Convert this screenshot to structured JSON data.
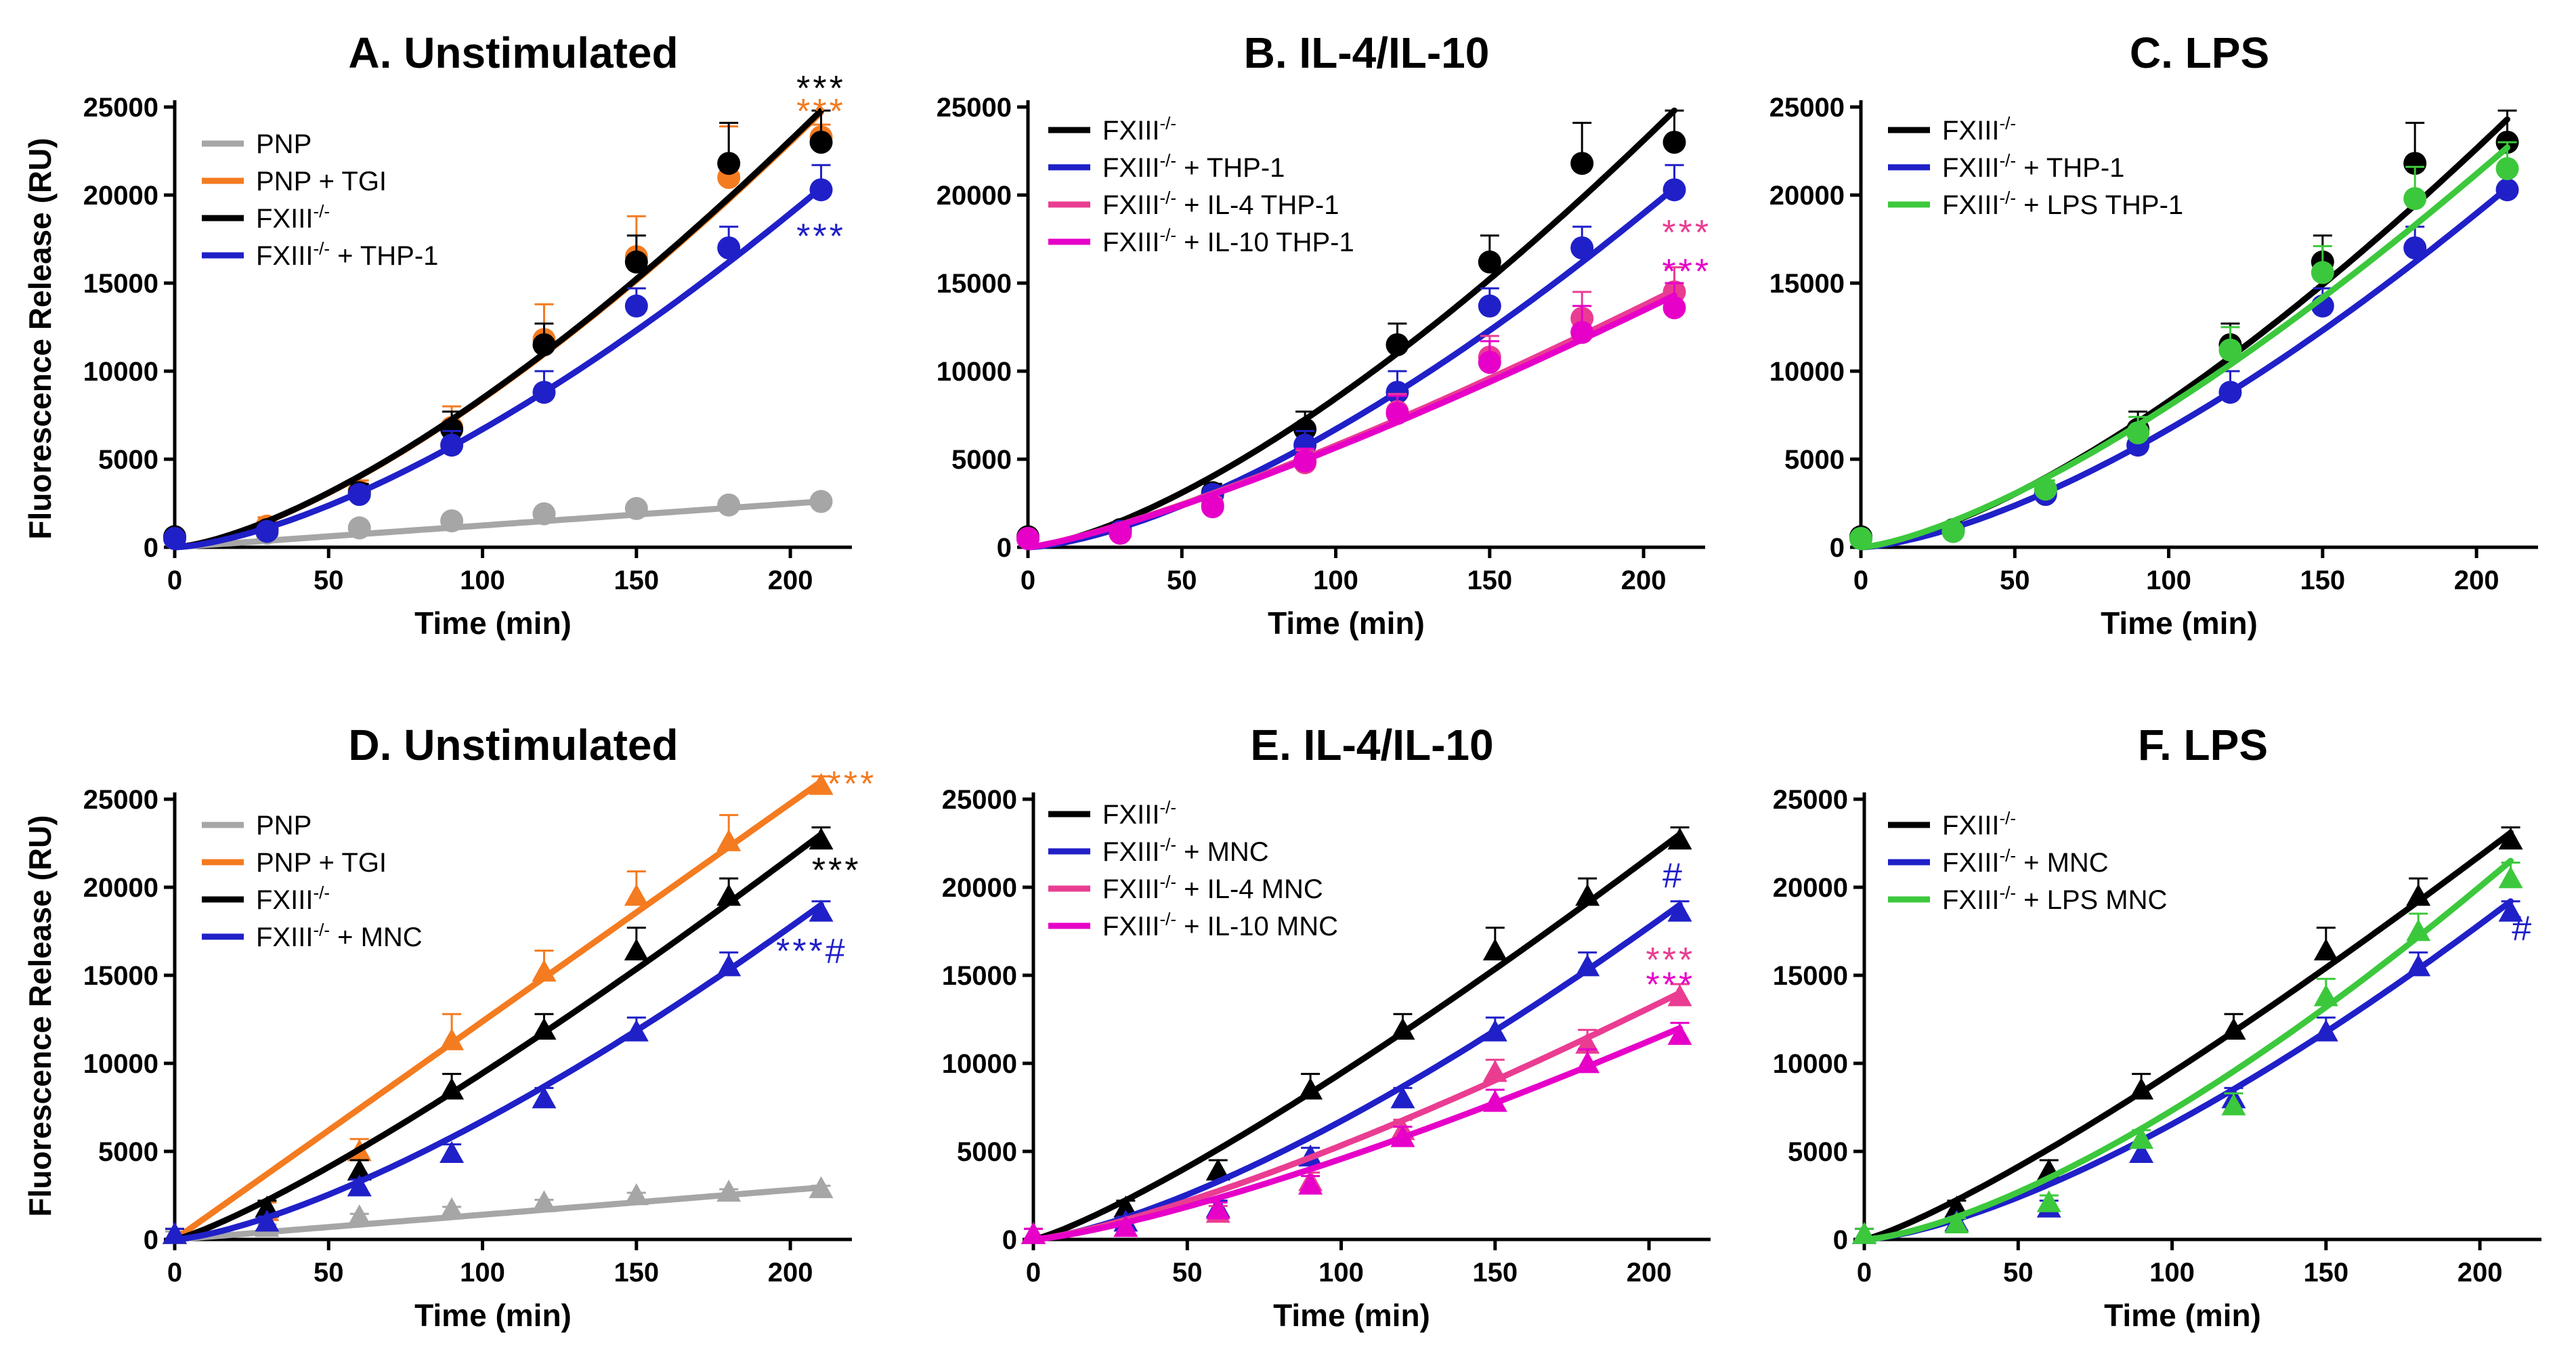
{
  "figure": {
    "ylabel": "Fluorescence Release (RU)",
    "xlabel": "Time (min)"
  },
  "colors": {
    "gray": "#a6a6a6",
    "orange": "#f47b20",
    "black": "#000000",
    "blue": "#2020c8",
    "pink": "#ea3d92",
    "magenta": "#e600c8",
    "green": "#3cc83c"
  },
  "chart_data": [
    {
      "panel": "A",
      "type": "line",
      "title": "A. Unstimulated",
      "xlabel": "Time (min)",
      "ylabel": "Fluorescence Release (RU)",
      "xlim": [
        0,
        220
      ],
      "ylim": [
        0,
        25000
      ],
      "xticks": [
        "0",
        "50",
        "100",
        "150",
        "200"
      ],
      "yticks": [
        "0",
        "5000",
        "10000",
        "15000",
        "20000",
        "25000"
      ],
      "marker": "circle",
      "x": [
        0,
        30,
        60,
        90,
        120,
        150,
        180,
        210
      ],
      "series": [
        {
          "name": "PNP",
          "color": "#a6a6a6",
          "values": [
            500,
            800,
            1100,
            1500,
            1900,
            2200,
            2400,
            2600
          ],
          "errors": [
            200,
            200,
            200,
            200,
            200,
            200,
            200,
            200
          ],
          "fit": [
            0,
            2600
          ],
          "fit_p": 1.0
        },
        {
          "name": "PNP + TGI",
          "color": "#f47b20",
          "values": [
            500,
            1200,
            3200,
            6800,
            11800,
            16500,
            21000,
            23300
          ],
          "errors": [
            300,
            500,
            600,
            1200,
            2000,
            2300,
            2900,
            700
          ],
          "fit": [
            0,
            24700
          ],
          "fit_p": 1.45
        },
        {
          "name": "FXIII-/-",
          "color": "#000000",
          "values": [
            600,
            1000,
            3100,
            6700,
            11500,
            16200,
            21800,
            23000
          ],
          "errors": [
            300,
            400,
            500,
            1000,
            1200,
            1500,
            2300,
            1800
          ],
          "fit": [
            0,
            24800
          ],
          "fit_p": 1.45
        },
        {
          "name": "FXIII-/- + THP-1",
          "color": "#2020c8",
          "values": [
            500,
            900,
            3000,
            5800,
            8800,
            13700,
            17000,
            20300
          ],
          "errors": [
            300,
            300,
            400,
            800,
            1200,
            1000,
            1200,
            1400
          ],
          "fit": [
            0,
            20400
          ],
          "fit_p": 1.5
        }
      ],
      "annotations": [
        {
          "text": "***",
          "color": "#000000",
          "x": 210,
          "y": 26000
        },
        {
          "text": "***",
          "color": "#f47b20",
          "x": 210,
          "y": 24700
        },
        {
          "text": "***",
          "color": "#2020c8",
          "x": 210,
          "y": 17600
        }
      ]
    },
    {
      "panel": "B",
      "type": "line",
      "title": "B. IL-4/IL-10",
      "xlabel": "Time (min)",
      "xlim": [
        0,
        220
      ],
      "ylim": [
        0,
        25000
      ],
      "xticks": [
        "0",
        "50",
        "100",
        "150",
        "200"
      ],
      "yticks": [
        "0",
        "5000",
        "10000",
        "15000",
        "20000",
        "25000"
      ],
      "marker": "circle",
      "x": [
        0,
        30,
        60,
        90,
        120,
        150,
        180,
        210
      ],
      "series": [
        {
          "name": "FXIII-/-",
          "color": "#000000",
          "values": [
            600,
            1000,
            3100,
            6700,
            11500,
            16200,
            21800,
            23000
          ],
          "errors": [
            300,
            400,
            500,
            1000,
            1200,
            1500,
            2300,
            1800
          ],
          "fit": [
            0,
            24800
          ],
          "fit_p": 1.45
        },
        {
          "name": "FXIII-/- + THP-1",
          "color": "#2020c8",
          "values": [
            500,
            900,
            3000,
            5800,
            8800,
            13700,
            17000,
            20300
          ],
          "errors": [
            300,
            300,
            400,
            800,
            1200,
            1000,
            1200,
            1400
          ],
          "fit": [
            0,
            20400
          ],
          "fit_p": 1.5
        },
        {
          "name": "FXIII-/- + IL-4 THP-1",
          "color": "#ea3d92",
          "values": [
            500,
            800,
            2400,
            4800,
            7700,
            10800,
            13000,
            14500
          ],
          "errors": [
            300,
            300,
            400,
            700,
            1000,
            1200,
            1500,
            1400
          ],
          "fit": [
            0,
            14600
          ],
          "fit_p": 1.25
        },
        {
          "name": "FXIII-/- + IL-10 THP-1",
          "color": "#e600c8",
          "values": [
            500,
            800,
            2300,
            4900,
            7600,
            10500,
            12200,
            13600
          ],
          "errors": [
            300,
            300,
            400,
            700,
            1000,
            1200,
            1500,
            1400
          ],
          "fit": [
            0,
            14300
          ],
          "fit_p": 1.25
        }
      ],
      "annotations": [
        {
          "text": "***",
          "color": "#ea3d92",
          "x": 214,
          "y": 17800
        },
        {
          "text": "***",
          "color": "#e600c8",
          "x": 214,
          "y": 15600
        }
      ]
    },
    {
      "panel": "C",
      "type": "line",
      "title": "C. LPS",
      "xlabel": "Time (min)",
      "xlim": [
        0,
        220
      ],
      "ylim": [
        0,
        25000
      ],
      "xticks": [
        "0",
        "50",
        "100",
        "150",
        "200"
      ],
      "yticks": [
        "0",
        "5000",
        "10000",
        "15000",
        "20000",
        "25000"
      ],
      "marker": "circle",
      "x": [
        0,
        30,
        60,
        90,
        120,
        150,
        180,
        210
      ],
      "series": [
        {
          "name": "FXIII-/-",
          "color": "#000000",
          "values": [
            600,
            1000,
            3100,
            6700,
            11500,
            16200,
            21800,
            23000
          ],
          "errors": [
            300,
            400,
            500,
            1000,
            1200,
            1500,
            2300,
            1800
          ],
          "fit": [
            0,
            24300
          ],
          "fit_p": 1.45
        },
        {
          "name": "FXIII-/- + THP-1",
          "color": "#2020c8",
          "values": [
            500,
            900,
            3000,
            5800,
            8800,
            13700,
            17000,
            20300
          ],
          "errors": [
            300,
            300,
            400,
            800,
            1200,
            1000,
            1200,
            1400
          ],
          "fit": [
            0,
            20400
          ],
          "fit_p": 1.5
        },
        {
          "name": "FXIII-/- + LPS THP-1",
          "color": "#3cc83c",
          "values": [
            500,
            900,
            3300,
            6500,
            11200,
            15600,
            19800,
            21500
          ],
          "errors": [
            300,
            300,
            500,
            900,
            1300,
            1500,
            1800,
            1500
          ],
          "fit": [
            0,
            22700
          ],
          "fit_p": 1.4
        }
      ],
      "annotations": []
    },
    {
      "panel": "D",
      "type": "line",
      "title": "D. Unstimulated",
      "xlabel": "Time (min)",
      "ylabel": "Fluorescence Release (RU)",
      "xlim": [
        0,
        220
      ],
      "ylim": [
        0,
        25000
      ],
      "xticks": [
        "0",
        "50",
        "100",
        "150",
        "200"
      ],
      "yticks": [
        "0",
        "5000",
        "10000",
        "15000",
        "20000",
        "25000"
      ],
      "marker": "triangle",
      "x": [
        0,
        30,
        60,
        90,
        120,
        150,
        180,
        210
      ],
      "series": [
        {
          "name": "PNP",
          "color": "#a6a6a6",
          "values": [
            300,
            700,
            1300,
            1700,
            2100,
            2500,
            2700,
            2900
          ],
          "errors": [
            150,
            150,
            150,
            150,
            150,
            150,
            150,
            150
          ],
          "fit": [
            0,
            2950
          ],
          "fit_p": 1.0
        },
        {
          "name": "PNP + TGI",
          "color": "#f47b20",
          "values": [
            300,
            1600,
            5000,
            11300,
            15200,
            19500,
            22600,
            25800
          ],
          "errors": [
            300,
            500,
            700,
            1500,
            1200,
            1400,
            1500,
            500
          ],
          "fit": [
            0,
            26000
          ],
          "fit_p": 1.0
        },
        {
          "name": "FXIII-/-",
          "color": "#000000",
          "values": [
            300,
            1800,
            3900,
            8500,
            11900,
            16400,
            19500,
            22700
          ],
          "errors": [
            300,
            400,
            600,
            900,
            900,
            1300,
            1000,
            700
          ],
          "fit": [
            0,
            23000
          ],
          "fit_p": 1.2
        },
        {
          "name": "FXIII-/- + MNC",
          "color": "#2020c8",
          "values": [
            300,
            1000,
            3000,
            4900,
            8000,
            11800,
            15500,
            18600
          ],
          "errors": [
            300,
            300,
            400,
            500,
            600,
            800,
            800,
            600
          ],
          "fit": [
            0,
            19000
          ],
          "fit_p": 1.4
        }
      ],
      "annotations": [
        {
          "text": "***",
          "color": "#f47b20",
          "x": 220,
          "y": 25800
        },
        {
          "text": "***",
          "color": "#000000",
          "x": 215,
          "y": 20900
        },
        {
          "text": "***#",
          "color": "#2020c8",
          "x": 207,
          "y": 16300
        }
      ]
    },
    {
      "panel": "E",
      "type": "line",
      "title": "E. IL-4/IL-10",
      "xlabel": "Time (min)",
      "xlim": [
        0,
        220
      ],
      "ylim": [
        0,
        25000
      ],
      "xticks": [
        "0",
        "50",
        "100",
        "150",
        "200"
      ],
      "yticks": [
        "0",
        "5000",
        "10000",
        "15000",
        "20000",
        "25000"
      ],
      "marker": "triangle",
      "x": [
        0,
        30,
        60,
        90,
        120,
        150,
        180,
        210
      ],
      "series": [
        {
          "name": "FXIII-/-",
          "color": "#000000",
          "values": [
            300,
            1800,
            3900,
            8500,
            11900,
            16400,
            19500,
            22700
          ],
          "errors": [
            300,
            400,
            600,
            900,
            900,
            1300,
            1000,
            700
          ],
          "fit": [
            0,
            23000
          ],
          "fit_p": 1.2
        },
        {
          "name": "FXIII-/- + MNC",
          "color": "#2020c8",
          "values": [
            300,
            1000,
            1800,
            4700,
            8000,
            11800,
            15500,
            18600
          ],
          "errors": [
            300,
            300,
            400,
            500,
            600,
            800,
            800,
            600
          ],
          "fit": [
            0,
            19000
          ],
          "fit_p": 1.4
        },
        {
          "name": "FXIII-/- + IL-4 MNC",
          "color": "#ea3d92",
          "values": [
            300,
            700,
            1500,
            3300,
            6200,
            9500,
            11100,
            13800
          ],
          "errors": [
            300,
            300,
            400,
            500,
            600,
            700,
            800,
            700
          ],
          "fit": [
            0,
            14000
          ],
          "fit_p": 1.3
        },
        {
          "name": "FXIII-/- + IL-10 MNC",
          "color": "#e600c8",
          "values": [
            300,
            700,
            1700,
            3100,
            5800,
            7800,
            10000,
            11600
          ],
          "errors": [
            300,
            300,
            400,
            500,
            600,
            700,
            800,
            700
          ],
          "fit": [
            0,
            12000
          ],
          "fit_p": 1.3
        }
      ],
      "annotations": [
        {
          "text": "#",
          "color": "#2020c8",
          "x": 208,
          "y": 20600
        },
        {
          "text": "***",
          "color": "#ea3d92",
          "x": 207,
          "y": 15800
        },
        {
          "text": "***",
          "color": "#e600c8",
          "x": 207,
          "y": 14400
        }
      ]
    },
    {
      "panel": "F",
      "type": "line",
      "title": "F. LPS",
      "xlabel": "Time (min)",
      "xlim": [
        0,
        220
      ],
      "ylim": [
        0,
        25000
      ],
      "xticks": [
        "0",
        "50",
        "100",
        "150",
        "200"
      ],
      "yticks": [
        "0",
        "5000",
        "10000",
        "15000",
        "20000",
        "25000"
      ],
      "marker": "triangle",
      "x": [
        0,
        30,
        60,
        90,
        120,
        150,
        180,
        210
      ],
      "series": [
        {
          "name": "FXIII-/-",
          "color": "#000000",
          "values": [
            300,
            1800,
            3900,
            8500,
            11900,
            16400,
            19500,
            22700
          ],
          "errors": [
            300,
            400,
            600,
            900,
            900,
            1300,
            1000,
            700
          ],
          "fit": [
            0,
            23100
          ],
          "fit_p": 1.2
        },
        {
          "name": "FXIII-/- + MNC",
          "color": "#2020c8",
          "values": [
            300,
            1000,
            1800,
            4900,
            8000,
            11800,
            15500,
            18600
          ],
          "errors": [
            300,
            300,
            400,
            500,
            600,
            800,
            800,
            600
          ],
          "fit": [
            0,
            19200
          ],
          "fit_p": 1.45
        },
        {
          "name": "FXIII-/- + LPS MNC",
          "color": "#3cc83c",
          "values": [
            300,
            900,
            2100,
            5700,
            7600,
            13800,
            17500,
            20500
          ],
          "errors": [
            300,
            300,
            400,
            500,
            700,
            1000,
            1000,
            900
          ],
          "fit": [
            0,
            21500
          ],
          "fit_p": 1.45
        }
      ],
      "annotations": [
        {
          "text": "#",
          "color": "#2020c8",
          "x": 214,
          "y": 17600
        }
      ]
    }
  ]
}
